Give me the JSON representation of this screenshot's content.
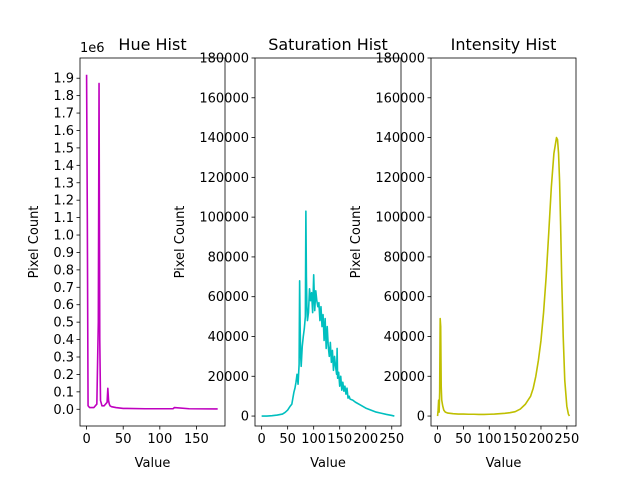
{
  "chart_data": [
    {
      "type": "line",
      "title": "Hue Hist",
      "xlabel": "Value",
      "ylabel": "Pixel Count",
      "offset_text": "1e6",
      "scale": 1000000,
      "color": "#bf00bf",
      "xlim": [
        -9,
        189
      ],
      "ylim": [
        -0.096,
        2.016
      ],
      "xticks": [
        0,
        50,
        100,
        150
      ],
      "xtick_labels": [
        "0",
        "50",
        "100",
        "150"
      ],
      "yticks": [
        0,
        0.1,
        0.2,
        0.3,
        0.4,
        0.5,
        0.6,
        0.7,
        0.8,
        0.9,
        1.0,
        1.1,
        1.2,
        1.3,
        1.4,
        1.5,
        1.6,
        1.7,
        1.8,
        1.9
      ],
      "ytick_labels": [
        "0.0",
        "0.1",
        "0.2",
        "0.3",
        "0.4",
        "0.5",
        "0.6",
        "0.7",
        "0.8",
        "0.9",
        "1.0",
        "1.1",
        "1.2",
        "1.3",
        "1.4",
        "1.5",
        "1.6",
        "1.7",
        "1.8",
        "1.9"
      ],
      "x": [
        0,
        1,
        2,
        4,
        10,
        14,
        16,
        17,
        18,
        19,
        21,
        24,
        28,
        29,
        30,
        31,
        32,
        34,
        40,
        50,
        80,
        118,
        120,
        140,
        179
      ],
      "y": [
        1.92,
        1.1,
        0.02,
        0.01,
        0.01,
        0.03,
        0.5,
        1.87,
        0.4,
        0.05,
        0.02,
        0.02,
        0.04,
        0.12,
        0.05,
        0.03,
        0.02,
        0.015,
        0.01,
        0.005,
        0.003,
        0.003,
        0.01,
        0.003,
        0.002
      ]
    },
    {
      "type": "line",
      "title": "Saturation Hist",
      "xlabel": "Value",
      "ylabel": "Pixel Count",
      "color": "#00bfbf",
      "xlim": [
        -12.75,
        267.75
      ],
      "ylim": [
        -5000,
        180000
      ],
      "xticks": [
        0,
        50,
        100,
        150,
        200,
        250
      ],
      "xtick_labels": [
        "0",
        "50",
        "100",
        "150",
        "200",
        "250"
      ],
      "yticks": [
        0,
        20000,
        40000,
        60000,
        80000,
        100000,
        120000,
        140000,
        160000,
        180000
      ],
      "ytick_labels": [
        "0",
        "20000",
        "40000",
        "60000",
        "80000",
        "100000",
        "120000",
        "140000",
        "160000",
        "180000"
      ],
      "x": [
        0,
        10,
        20,
        30,
        40,
        45,
        50,
        55,
        58,
        60,
        62,
        64,
        66,
        68,
        70,
        72,
        73,
        74,
        75,
        76,
        78,
        80,
        82,
        84,
        85,
        86,
        87,
        88,
        90,
        92,
        94,
        96,
        98,
        100,
        102,
        104,
        106,
        108,
        110,
        112,
        114,
        116,
        118,
        120,
        122,
        124,
        126,
        128,
        130,
        132,
        134,
        136,
        138,
        140,
        142,
        144,
        145,
        146,
        148,
        150,
        152,
        154,
        156,
        158,
        160,
        162,
        164,
        166,
        168,
        170,
        175,
        180,
        190,
        200,
        210,
        220,
        230,
        240,
        250,
        255
      ],
      "y": [
        0,
        0,
        200,
        500,
        1000,
        1800,
        3000,
        5000,
        6000,
        9000,
        12000,
        14000,
        17000,
        21000,
        16000,
        26000,
        68000,
        45000,
        30000,
        25000,
        35000,
        40000,
        44000,
        50000,
        103000,
        70000,
        55000,
        48000,
        52000,
        64000,
        58000,
        62000,
        52000,
        71000,
        53000,
        63000,
        58000,
        55000,
        57000,
        48000,
        55000,
        45000,
        51000,
        38000,
        49000,
        34000,
        45000,
        35000,
        30000,
        37000,
        27000,
        33000,
        23000,
        30000,
        25000,
        21000,
        34000,
        19000,
        22000,
        15000,
        20000,
        13000,
        17000,
        12500,
        15000,
        11000,
        14000,
        9000,
        10000,
        8500,
        8000,
        7000,
        5500,
        4000,
        3000,
        2000,
        1400,
        800,
        300,
        0
      ]
    },
    {
      "type": "line",
      "title": "Intensity Hist",
      "xlabel": "Value",
      "ylabel": "Pixel Count",
      "color": "#bfbf00",
      "xlim": [
        -12.75,
        267.75
      ],
      "ylim": [
        -5000,
        180000
      ],
      "xticks": [
        0,
        50,
        100,
        150,
        200,
        250
      ],
      "xtick_labels": [
        "0",
        "50",
        "100",
        "150",
        "200",
        "250"
      ],
      "yticks": [
        0,
        20000,
        40000,
        60000,
        80000,
        100000,
        120000,
        140000,
        160000,
        180000
      ],
      "ytick_labels": [
        "0",
        "20000",
        "40000",
        "60000",
        "80000",
        "100000",
        "120000",
        "140000",
        "160000",
        "180000"
      ],
      "x": [
        0,
        1,
        2,
        3,
        4,
        5,
        6,
        7,
        8,
        10,
        12,
        15,
        20,
        30,
        40,
        50,
        60,
        70,
        80,
        90,
        100,
        110,
        120,
        130,
        140,
        150,
        160,
        170,
        180,
        185,
        190,
        195,
        200,
        205,
        210,
        215,
        220,
        225,
        230,
        232,
        234,
        236,
        238,
        240,
        243,
        246,
        250,
        253,
        255
      ],
      "y": [
        0,
        3000,
        8000,
        2000,
        12000,
        49000,
        45000,
        15000,
        8000,
        5000,
        3000,
        2000,
        1500,
        1200,
        1000,
        1000,
        900,
        900,
        800,
        800,
        900,
        1000,
        1200,
        1400,
        1700,
        2200,
        3500,
        6000,
        10000,
        14000,
        20000,
        28000,
        38000,
        52000,
        70000,
        92000,
        115000,
        132000,
        140000,
        139000,
        132000,
        118000,
        96000,
        70000,
        40000,
        18000,
        5000,
        1000,
        0
      ]
    }
  ]
}
